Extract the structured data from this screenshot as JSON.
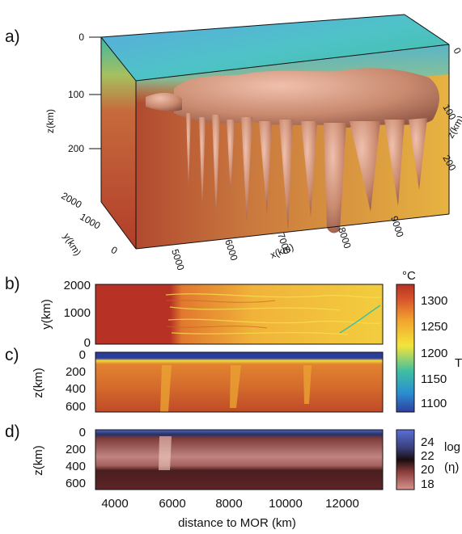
{
  "chart_data": [
    {
      "panel": "a)",
      "type": "heatmap",
      "view": "3d-block",
      "z_label": "z(km)",
      "z_ticks": [
        "0",
        "100",
        "200"
      ],
      "z_ticks_right": [
        "0",
        "100",
        "200"
      ],
      "z_label_right": "z(km)",
      "y_label": "y(km)",
      "y_ticks": [
        "0",
        "1000",
        "2000"
      ],
      "x_label": "x(km)",
      "x_ticks": [
        "5000",
        "6000",
        "7000",
        "8000",
        "9000"
      ]
    },
    {
      "panel": "b)",
      "type": "heatmap",
      "ylabel": "y(km)",
      "yticks": [
        "0",
        "1000",
        "2000"
      ],
      "ylim": [
        0,
        2000
      ]
    },
    {
      "panel": "c)",
      "type": "heatmap",
      "ylabel": "z(km)",
      "yticks": [
        "0",
        "200",
        "400",
        "600"
      ],
      "ylim": [
        0,
        660
      ]
    },
    {
      "panel": "d)",
      "type": "heatmap",
      "ylabel": "z(km)",
      "yticks": [
        "0",
        "200",
        "400",
        "600"
      ],
      "xlabel": "distance to MOR (km)",
      "xticks": [
        "4000",
        "6000",
        "8000",
        "10000",
        "12000"
      ],
      "xlim": [
        3400,
        13500
      ]
    }
  ],
  "colorbar_temperature": {
    "unit": "°C",
    "ticks": [
      "1300",
      "1250",
      "1200",
      "1150",
      "1100"
    ],
    "label": "T",
    "range": [
      1075,
      1330
    ]
  },
  "colorbar_viscosity": {
    "ticks": [
      "24",
      "22",
      "20",
      "18"
    ],
    "label": "log",
    "label2": "(η)",
    "range": [
      17.5,
      25
    ]
  }
}
